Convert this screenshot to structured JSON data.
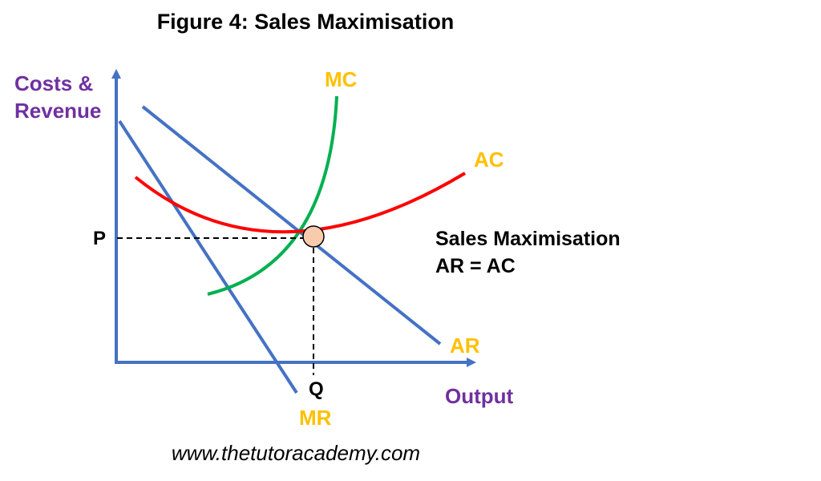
{
  "title": "Figure 4: Sales Maximisation",
  "axes": {
    "y_label_line1": "Costs &",
    "y_label_line2": "Revenue",
    "x_label": "Output"
  },
  "curves": {
    "mc": "MC",
    "ac": "AC",
    "ar": "AR",
    "mr": "MR"
  },
  "markers": {
    "price": "P",
    "quantity": "Q"
  },
  "annotation": {
    "line1": "Sales Maximisation",
    "line2": "AR = AC"
  },
  "footer_url": "www.thetutoracademy.com",
  "colors": {
    "axis": "#4472C4",
    "axis_label": "#7030A0",
    "curve_label": "#FFC000",
    "mc": "#00B050",
    "ac": "#FF0000",
    "ar": "#4472C4",
    "mr": "#4472C4",
    "equilibrium_point": "#F8CBAD"
  }
}
